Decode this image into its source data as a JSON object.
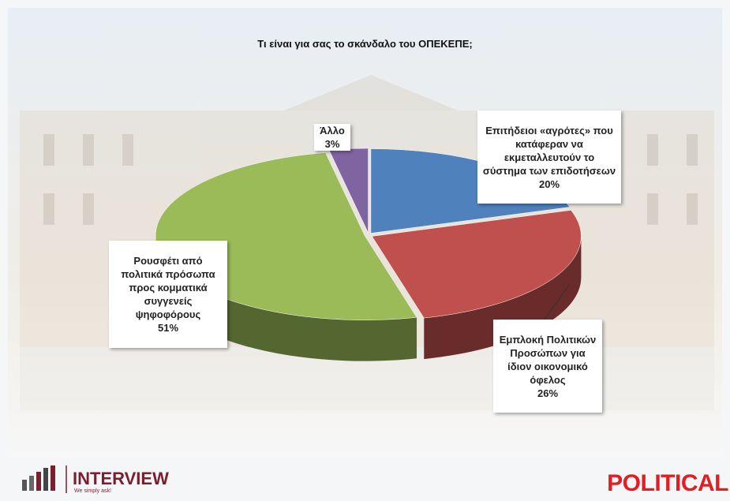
{
  "chart_data": {
    "type": "pie",
    "title": "Τι είναι για σας το σκάνδαλο του ΟΠΕΚΕΠΕ;",
    "categories": [
      "Επιτήδειοι «αγρότες» που κατάφεραν να εκμεταλλευτούν το σύστημα των επιδοτήσεων",
      "Εμπλοκή Πολιτικών Προσώπων για ίδιον οικονομικό όφελος",
      "Ρουσφέτι από πολιτικά πρόσωπα προς κομματικά συγγενείς ψηφοφόρους",
      "Άλλο"
    ],
    "values": [
      20,
      26,
      51,
      3
    ],
    "value_labels": [
      "20%",
      "26%",
      "51%",
      "3%"
    ],
    "colors": [
      "#4f81bd",
      "#c0504d",
      "#9bbb59",
      "#8064a2"
    ]
  },
  "logos": {
    "left": "INTERVIEW",
    "tagline": "We simply ask!",
    "right": "POLITICAL"
  }
}
